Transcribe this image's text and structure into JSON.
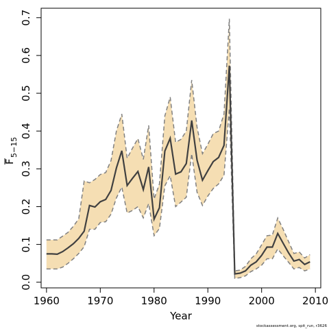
{
  "chart_data": {
    "type": "line",
    "xlabel": "Year",
    "ylabel_main": "F",
    "ylabel_sub": "5−15",
    "footnote": "stockassessment.org, spit_run, r3626",
    "xlim": [
      1959,
      2011
    ],
    "ylim": [
      -0.015,
      0.725
    ],
    "x_ticks": [
      1960,
      1970,
      1980,
      1990,
      2000,
      2010
    ],
    "y_ticks": [
      0.0,
      0.1,
      0.2,
      0.3,
      0.4,
      0.5,
      0.6,
      0.7
    ],
    "y_tick_labels": [
      "0.0",
      "0.1",
      "0.2",
      "0.3",
      "0.4",
      "0.5",
      "0.6",
      "0.7"
    ],
    "colors": {
      "band": "#f5deb3",
      "bounds": "#808080",
      "estimate": "#404040"
    },
    "series": [
      {
        "x": [
          1960,
          1961,
          1962,
          1963,
          1964,
          1965,
          1966,
          1967,
          1968,
          1969,
          1970,
          1971,
          1972,
          1973,
          1974,
          1975,
          1976,
          1977,
          1978,
          1979,
          1980,
          1981,
          1982,
          1983,
          1984,
          1985,
          1986,
          1987,
          1988,
          1989,
          1990,
          1991,
          1992,
          1993,
          1994,
          1995,
          1996,
          1997,
          1998,
          1999,
          2000,
          2001,
          2002,
          2003,
          2004,
          2005,
          2006,
          2007,
          2008,
          2009
        ],
        "estimate": [
          0.075,
          0.075,
          0.074,
          0.081,
          0.091,
          0.102,
          0.116,
          0.135,
          0.203,
          0.199,
          0.213,
          0.219,
          0.243,
          0.302,
          0.348,
          0.256,
          0.275,
          0.293,
          0.245,
          0.305,
          0.167,
          0.197,
          0.347,
          0.381,
          0.286,
          0.292,
          0.314,
          0.428,
          0.323,
          0.27,
          0.295,
          0.319,
          0.33,
          0.362,
          0.573,
          0.022,
          0.024,
          0.03,
          0.045,
          0.054,
          0.071,
          0.093,
          0.093,
          0.129,
          0.103,
          0.078,
          0.056,
          0.06,
          0.047,
          0.054
        ],
        "lower": [
          0.035,
          0.035,
          0.035,
          0.04,
          0.05,
          0.062,
          0.076,
          0.094,
          0.14,
          0.14,
          0.158,
          0.16,
          0.18,
          0.223,
          0.252,
          0.183,
          0.19,
          0.2,
          0.17,
          0.208,
          0.123,
          0.142,
          0.255,
          0.282,
          0.2,
          0.212,
          0.225,
          0.34,
          0.238,
          0.203,
          0.228,
          0.248,
          0.26,
          0.283,
          0.46,
          0.01,
          0.012,
          0.017,
          0.028,
          0.035,
          0.045,
          0.062,
          0.062,
          0.088,
          0.07,
          0.053,
          0.035,
          0.039,
          0.03,
          0.035
        ],
        "upper": [
          0.112,
          0.112,
          0.112,
          0.122,
          0.132,
          0.148,
          0.168,
          0.268,
          0.263,
          0.272,
          0.285,
          0.29,
          0.322,
          0.4,
          0.445,
          0.328,
          0.355,
          0.38,
          0.325,
          0.415,
          0.22,
          0.26,
          0.44,
          0.49,
          0.37,
          0.378,
          0.4,
          0.535,
          0.41,
          0.34,
          0.365,
          0.393,
          0.4,
          0.445,
          0.697,
          0.03,
          0.032,
          0.042,
          0.062,
          0.075,
          0.099,
          0.123,
          0.125,
          0.17,
          0.14,
          0.108,
          0.076,
          0.08,
          0.064,
          0.073
        ]
      }
    ]
  }
}
